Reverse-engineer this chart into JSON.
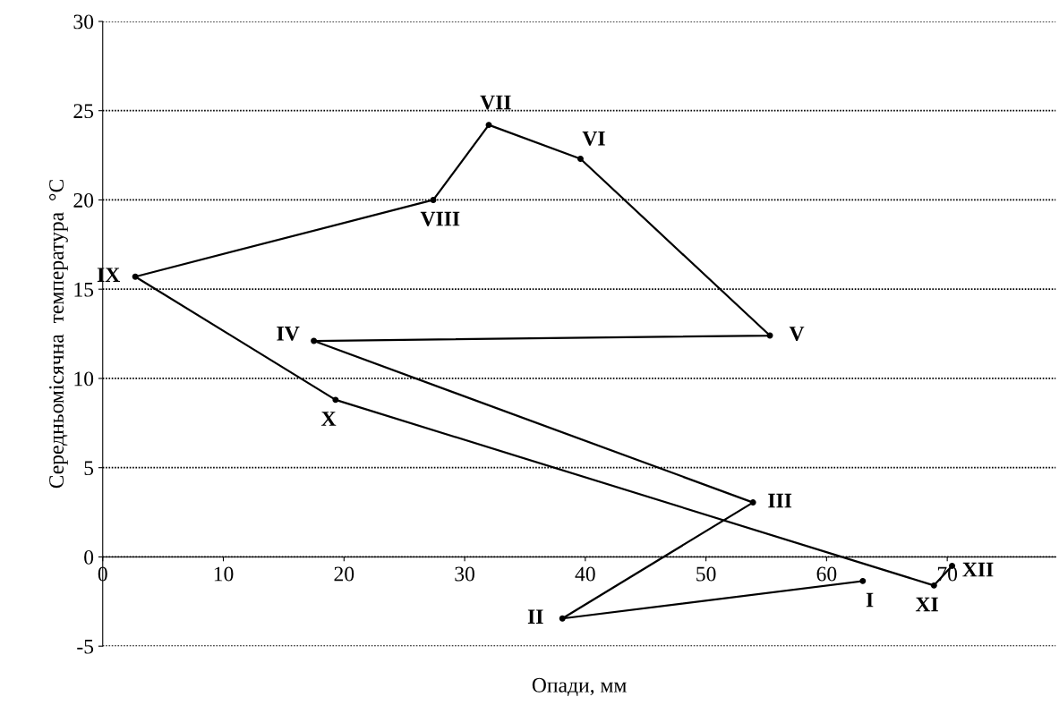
{
  "chart_data": {
    "type": "line",
    "xlabel": "Опади, мм",
    "ylabel": "Середньомісячна  температура  °C",
    "x": [
      63.0,
      38.1,
      53.9,
      17.5,
      55.3,
      39.6,
      32.0,
      27.4,
      2.7,
      19.3,
      68.9,
      70.4
    ],
    "values": [
      -1.35,
      -3.45,
      3.05,
      12.1,
      12.4,
      22.3,
      24.2,
      20.0,
      15.7,
      8.8,
      -1.6,
      -0.5
    ],
    "color": "#000000",
    "marker": "circle",
    "line_style": "solid",
    "grid": "y",
    "legend": false,
    "xlim": [
      0,
      79
    ],
    "xticks": [
      0,
      10,
      20,
      30,
      40,
      50,
      60,
      70
    ],
    "ylim": [
      -5,
      30
    ],
    "yticks": [
      -5,
      0,
      5,
      10,
      15,
      20,
      25,
      30
    ],
    "annotations": [
      {
        "text": "I",
        "x": 63.0,
        "y": -1.35
      },
      {
        "text": "II",
        "x": 38.1,
        "y": -3.45
      },
      {
        "text": "III",
        "x": 53.9,
        "y": 3.05
      },
      {
        "text": "IV",
        "x": 17.5,
        "y": 12.1
      },
      {
        "text": "V",
        "x": 55.3,
        "y": 12.4
      },
      {
        "text": "VI",
        "x": 39.6,
        "y": 22.3
      },
      {
        "text": "VII",
        "x": 32.0,
        "y": 24.2
      },
      {
        "text": "VIII",
        "x": 27.4,
        "y": 20.0
      },
      {
        "text": "IX",
        "x": 2.7,
        "y": 15.7
      },
      {
        "text": "X",
        "x": 19.3,
        "y": 8.8
      },
      {
        "text": "XI",
        "x": 68.9,
        "y": -1.6
      },
      {
        "text": "XII",
        "x": 70.4,
        "y": -0.5
      }
    ]
  }
}
